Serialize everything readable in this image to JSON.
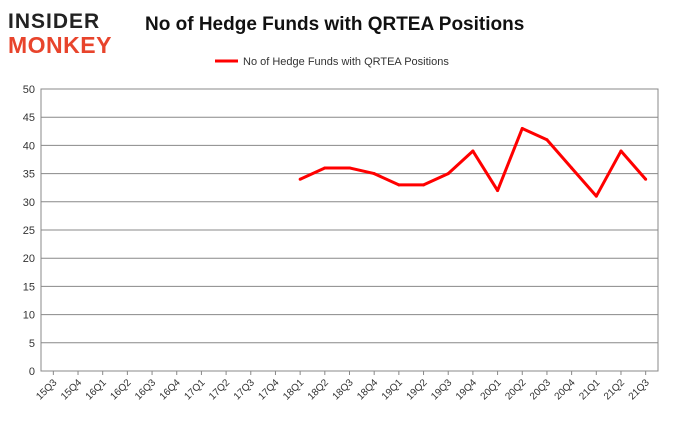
{
  "logo": {
    "line1": "INSIDER",
    "line2": "MONKEY"
  },
  "chart_data": {
    "type": "line",
    "title": "No of Hedge Funds with QRTEA Positions",
    "xlabel": "",
    "ylabel": "",
    "ylim": [
      0,
      50
    ],
    "yticks": [
      0,
      5,
      10,
      15,
      20,
      25,
      30,
      35,
      40,
      45,
      50
    ],
    "grid": true,
    "legend_placement": "top-center",
    "categories": [
      "15Q3",
      "15Q4",
      "16Q1",
      "16Q2",
      "16Q3",
      "16Q4",
      "17Q1",
      "17Q2",
      "17Q3",
      "17Q4",
      "18Q1",
      "18Q2",
      "18Q3",
      "18Q4",
      "19Q1",
      "19Q2",
      "19Q3",
      "19Q4",
      "20Q1",
      "20Q2",
      "20Q3",
      "20Q4",
      "21Q1",
      "21Q2",
      "21Q3"
    ],
    "series": [
      {
        "name": "No of Hedge Funds with QRTEA Positions",
        "color": "#ff0000",
        "values": [
          null,
          null,
          null,
          null,
          null,
          null,
          null,
          null,
          null,
          null,
          34,
          36,
          36,
          35,
          33,
          33,
          35,
          39,
          32,
          43,
          41,
          36,
          31,
          39,
          34
        ]
      }
    ]
  }
}
